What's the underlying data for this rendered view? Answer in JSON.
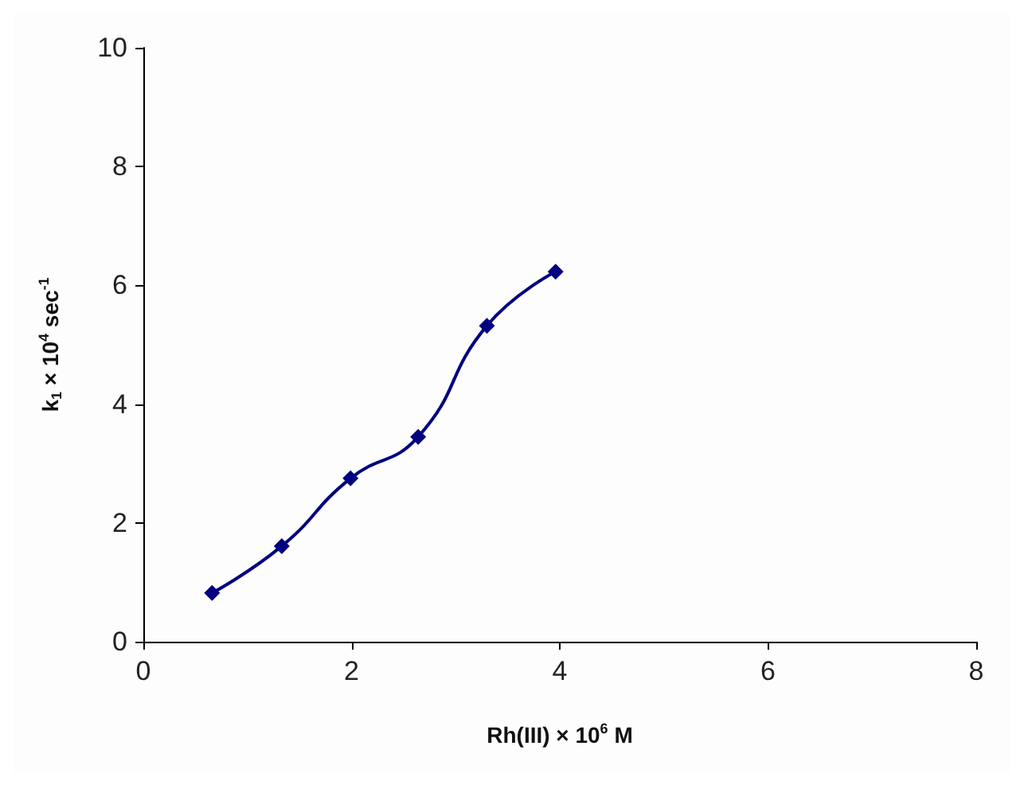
{
  "chart_data": {
    "type": "line",
    "xlabel": "Rh(III) × 10$^{6}$ M",
    "ylabel": "k$_{1}$ × 10$^{4}$ sec$^{-1}$",
    "x": [
      0.66,
      1.33,
      1.99,
      2.64,
      3.3,
      3.96
    ],
    "series": [
      {
        "color": "#000080",
        "values": [
          0.82,
          1.61,
          2.75,
          3.45,
          5.32,
          6.23
        ]
      }
    ],
    "xlim": [
      0,
      8
    ],
    "xticks": [
      0,
      2,
      4,
      6,
      8
    ],
    "ylim": [
      0,
      10
    ],
    "yticks": [
      0,
      2,
      4,
      6,
      8,
      10
    ],
    "grid": false,
    "marker": "diamond",
    "line_style": "solid"
  }
}
